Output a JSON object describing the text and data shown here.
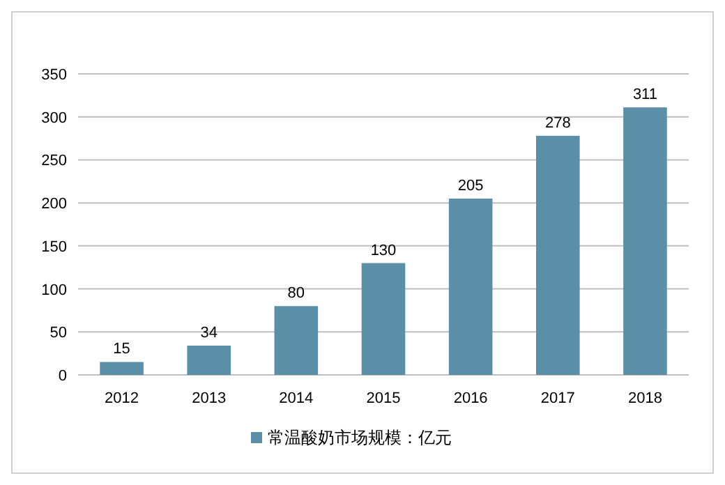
{
  "chart_data": {
    "type": "bar",
    "categories": [
      "2012",
      "2013",
      "2014",
      "2015",
      "2016",
      "2017",
      "2018"
    ],
    "series": [
      {
        "name": "常温酸奶市场规模：亿元",
        "color": "#5b8fa8",
        "values": [
          15,
          34,
          80,
          130,
          205,
          278,
          311
        ]
      }
    ],
    "ylim": [
      0,
      350
    ],
    "yticks": [
      0,
      50,
      100,
      150,
      200,
      250,
      300,
      350
    ],
    "grid": "y",
    "legend": "bottom",
    "data_labels": true
  }
}
